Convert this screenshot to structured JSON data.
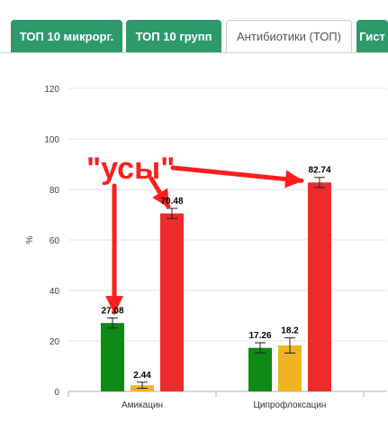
{
  "tabs": [
    {
      "label": "ТОП 10 микрорг.",
      "active": false
    },
    {
      "label": "ТОП 10 групп",
      "active": false
    },
    {
      "label": "Антибиотики (ТОП)",
      "active": true
    },
    {
      "label": "Гист",
      "active": false
    }
  ],
  "colors": {
    "tab_bg": "#2e9a6b",
    "series": [
      "#0e8a17",
      "#f0b422",
      "#ee2b2b"
    ],
    "annotation": "#ff1d1d"
  },
  "annotation": {
    "text": "\"усы\""
  },
  "chart_data": {
    "type": "bar",
    "ylabel": "%",
    "ylim": [
      0,
      120
    ],
    "yticks": [
      0,
      20,
      40,
      60,
      80,
      100,
      120
    ],
    "categories": [
      "Амикацин",
      "Ципрофлоксацин"
    ],
    "series": [
      {
        "values": [
          27.08,
          17.26
        ],
        "labels": [
          "27.08",
          "17.26"
        ],
        "err": [
          2.0,
          2.0
        ]
      },
      {
        "values": [
          2.44,
          18.2
        ],
        "labels": [
          "2.44",
          "18.2"
        ],
        "err": [
          1.2,
          3.0
        ]
      },
      {
        "values": [
          70.48,
          82.74
        ],
        "labels": [
          "70.48",
          "82.74"
        ],
        "err": [
          2.0,
          2.0
        ]
      }
    ],
    "grid": true,
    "error_bars": true
  }
}
